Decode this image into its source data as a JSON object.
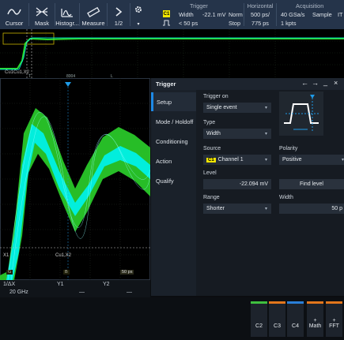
{
  "toolbar": {
    "buttons": [
      {
        "label": "Cursor",
        "icon": "cursor-wave-icon"
      },
      {
        "label": "Mask",
        "icon": "mask-icon"
      },
      {
        "label": "Histogr...",
        "icon": "histogram-icon"
      },
      {
        "label": "Measure",
        "icon": "ruler-icon"
      },
      {
        "label": "1/2",
        "icon": "chevron-right-icon"
      }
    ],
    "settings_icon": "gear-icon"
  },
  "trigger_info": {
    "header": "Trigger",
    "source_badge": "C1",
    "type": "Width",
    "level": "-22.1 mV",
    "mode": "Norm",
    "condition": "< 50 ps",
    "state": "Stop"
  },
  "horizontal_info": {
    "header": "Horizontal",
    "scale": "500 ps/",
    "position": "775 ps"
  },
  "acquisition_info": {
    "header": "Acquisition",
    "rate": "40 GSa/s",
    "mode": "Sample",
    "points": "1 kpts",
    "extra": "IT"
  },
  "overview": {
    "cursor_label": "Cu1Cu1,X2",
    "markers": [
      "T",
      "T",
      "8004",
      "L",
      "L",
      "4"
    ]
  },
  "zoom": {
    "cursor_x1": "X1",
    "cursor_label": "Cu1,X2",
    "bottom_markers": [
      "G",
      "B",
      "50 ps",
      "L"
    ]
  },
  "cursor_table": {
    "headers": [
      "1/ΔX",
      "Y1",
      "Y2"
    ],
    "values": [
      "20 GHz",
      "—",
      "—"
    ]
  },
  "dialog": {
    "title": "Trigger",
    "nav": [
      {
        "label": "Setup",
        "active": true
      },
      {
        "label": "Mode / Holdoff",
        "active": false
      },
      {
        "label": "Conditioning",
        "active": false
      },
      {
        "label": "Action",
        "active": false
      },
      {
        "label": "Qualify",
        "active": false
      }
    ],
    "trigger_on_label": "Trigger on",
    "trigger_on_value": "Single event",
    "type_label": "Type",
    "type_value": "Width",
    "source_label": "Source",
    "source_badge": "C1",
    "source_value": "Channel 1",
    "polarity_label": "Polarity",
    "polarity_value": "Positive",
    "level_label": "Level",
    "level_value": "-22.094 mV",
    "find_level_label": "Find level",
    "range_label": "Range",
    "range_value": "Shorter",
    "width_label": "Width",
    "width_value": "50 p"
  },
  "bottom_bar": {
    "channels": [
      {
        "label": "C2",
        "color": "#3fbf3f"
      },
      {
        "label": "C3",
        "color": "#e2761c"
      },
      {
        "label": "C4",
        "color": "#2a7fd8"
      },
      {
        "label": "Math",
        "plus": "+",
        "color": "#e2761c"
      },
      {
        "label": "FFT",
        "plus": "+",
        "color": "#e2761c"
      }
    ]
  },
  "colors": {
    "accent": "#1e8ae6",
    "channel1": "#f2e600",
    "waveform_cyan": "#00f0e6",
    "waveform_green": "#33ff33"
  }
}
